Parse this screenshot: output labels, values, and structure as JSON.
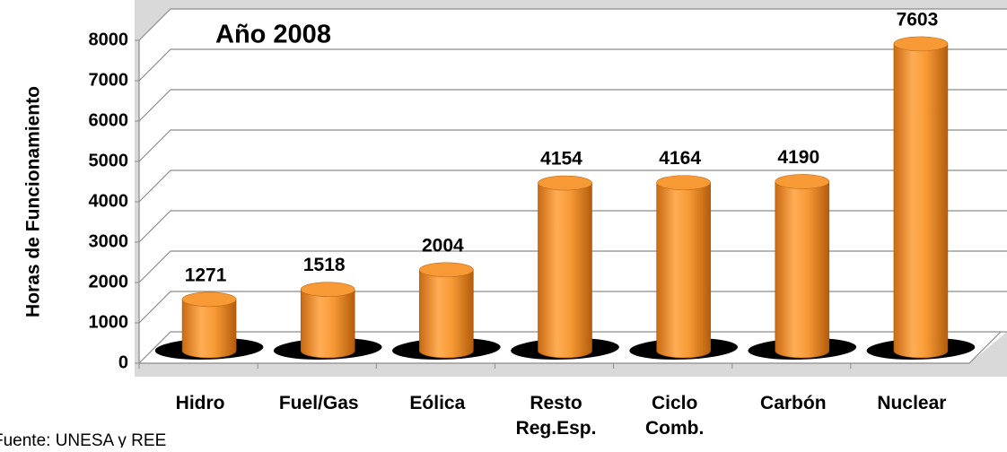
{
  "chart_data": {
    "type": "bar3d",
    "title": "Año 2008",
    "y_label": "Horas de Funcionamiento",
    "source": "Fuente: UNESA y REE",
    "categories": [
      "Hidro",
      "Fuel/Gas",
      "Eólica",
      "Resto Reg.Esp.",
      "Ciclo Comb.",
      "Carbón",
      "Nuclear"
    ],
    "values": [
      1271,
      1518,
      2004,
      4154,
      4164,
      4190,
      7603
    ],
    "color": "#f79a35",
    "ylim": [
      0,
      8000
    ],
    "yticks": [
      0,
      1000,
      2000,
      3000,
      4000,
      5000,
      6000,
      7000,
      8000
    ],
    "grid": true
  }
}
